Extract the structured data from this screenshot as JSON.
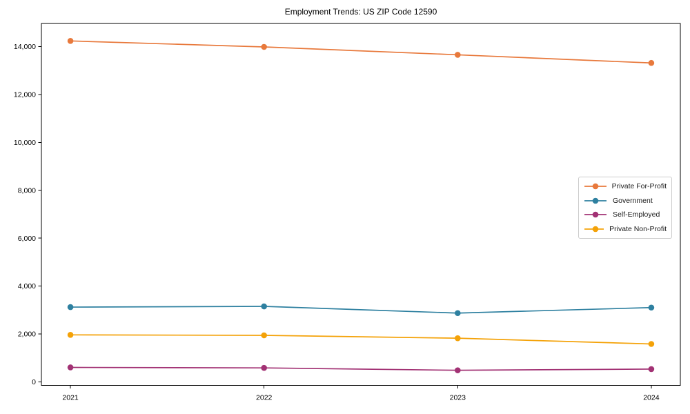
{
  "figure": {
    "background": "#ffffff",
    "axis_color": "#000000"
  },
  "chart_data": {
    "type": "line",
    "title": "Employment Trends: US ZIP Code 12590",
    "xlabel": "",
    "ylabel": "",
    "x": [
      2021,
      2022,
      2023,
      2024
    ],
    "x_tick_labels": [
      "2021",
      "2022",
      "2023",
      "2024"
    ],
    "y_ticks": [
      0,
      2000,
      4000,
      6000,
      8000,
      10000,
      12000,
      14000
    ],
    "y_tick_labels": [
      "0",
      "2,000",
      "4,000",
      "6,000",
      "8,000",
      "10,000",
      "12,000",
      "14,000"
    ],
    "xlim": [
      2020.85,
      2024.15
    ],
    "ylim": [
      -150,
      14970
    ],
    "grid": false,
    "legend_position": "center-right",
    "marker": "circle",
    "series": [
      {
        "name": "Private For-Profit",
        "color": "#e8793c",
        "values": [
          14240,
          13990,
          13660,
          13320
        ]
      },
      {
        "name": "Government",
        "color": "#2e80a0",
        "values": [
          3120,
          3150,
          2870,
          3100
        ]
      },
      {
        "name": "Self-Employed",
        "color": "#a23274",
        "values": [
          600,
          580,
          480,
          530
        ]
      },
      {
        "name": "Private Non-Profit",
        "color": "#f4a208",
        "values": [
          1960,
          1940,
          1820,
          1580
        ]
      }
    ]
  }
}
